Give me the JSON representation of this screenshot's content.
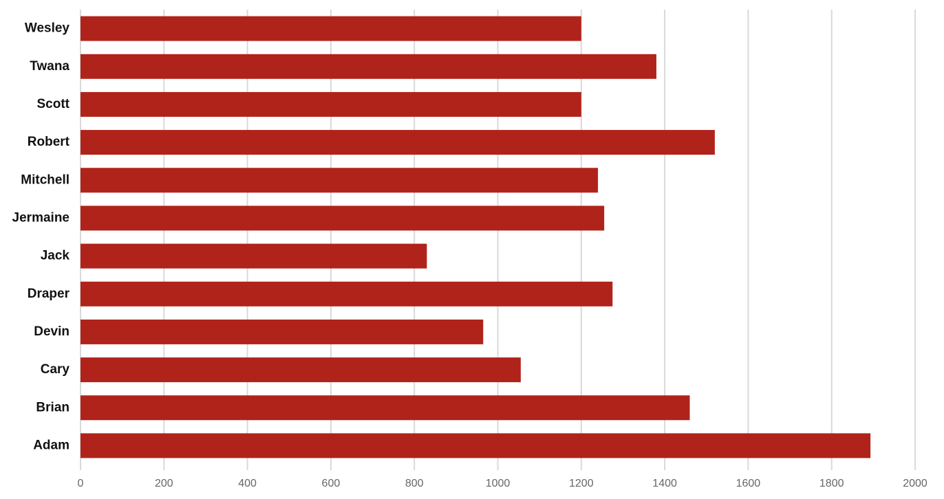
{
  "chart_data": {
    "type": "barh",
    "categories": [
      "Wesley",
      "Twana",
      "Scott",
      "Robert",
      "Mitchell",
      "Jermaine",
      "Jack",
      "Draper",
      "Devin",
      "Cary",
      "Brian",
      "Adam"
    ],
    "values": [
      1200,
      1380,
      1200,
      1520,
      1240,
      1255,
      830,
      1275,
      965,
      1055,
      1460,
      1893
    ],
    "color": "#b0231a",
    "xlim": [
      0,
      2000
    ],
    "xticks": [
      0,
      200,
      400,
      600,
      800,
      1000,
      1200,
      1400,
      1600,
      1800,
      2000
    ],
    "grid": true
  }
}
